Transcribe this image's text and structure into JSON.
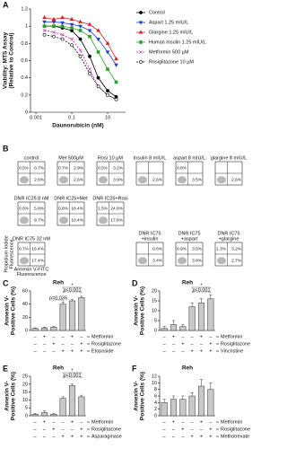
{
  "chart_data": [
    {
      "type": "line",
      "panel": "A",
      "y_label": [
        "Viability: MTS Assay",
        "(Relative to Control)"
      ],
      "x_label": "Daunorubicin (nM)",
      "log_x": true,
      "x": [
        0.003,
        0.01,
        0.03,
        0.1,
        0.3,
        1,
        3,
        10,
        30
      ],
      "xlim": [
        0.0005,
        100
      ],
      "xticks": [
        0.001,
        0.1,
        10
      ],
      "ylim": [
        0,
        1.2
      ],
      "yticks": [
        0,
        0.2,
        0.4,
        0.6,
        0.8,
        1,
        1.2
      ],
      "legend": "right",
      "series": [
        {
          "name": "Control",
          "color": "#000000",
          "marker": "circle",
          "values": [
            1.0,
            1.0,
            0.98,
            0.95,
            0.85,
            0.65,
            0.4,
            0.25,
            0.18
          ]
        },
        {
          "name": "Aspart 1.25 mIU/L",
          "color": "#1f3fbf",
          "marker": "tri-down",
          "values": [
            1.05,
            1.05,
            1.04,
            1.02,
            1.0,
            0.95,
            0.85,
            0.7,
            0.55
          ]
        },
        {
          "name": "Glargine 1.25 mIU/L",
          "color": "#d42020",
          "marker": "tri-up",
          "values": [
            1.1,
            1.08,
            1.1,
            1.08,
            1.05,
            1.02,
            0.95,
            0.8,
            0.62
          ]
        },
        {
          "name": "Human Insulin 1.25 mIU/L",
          "color": "#2aa02a",
          "marker": "square",
          "values": [
            1.0,
            1.0,
            1.0,
            0.98,
            0.95,
            0.88,
            0.7,
            0.5,
            0.35
          ]
        },
        {
          "name": "Metformin 500 µM",
          "color": "#c020c0",
          "marker": "cross",
          "dash": true,
          "values": [
            0.95,
            0.93,
            0.9,
            0.85,
            0.72,
            0.5,
            0.3,
            0.2,
            0.15
          ]
        },
        {
          "name": "Rosiglitazone 10 µM",
          "color": "#000000",
          "marker": "open-circle",
          "dash": true,
          "values": [
            0.9,
            0.88,
            0.85,
            0.78,
            0.65,
            0.45,
            0.3,
            0.2,
            0.15
          ]
        }
      ]
    },
    {
      "type": "bar",
      "panel": "C",
      "title": "Reh",
      "y_label": [
        "Annexin V-",
        "Positive Cells (%)"
      ],
      "color": "#c8c8c8",
      "ylim": [
        0,
        60
      ],
      "yticks": [
        0,
        20,
        40,
        60
      ],
      "values": [
        3,
        4,
        5,
        40,
        45,
        50
      ],
      "errors": [
        1,
        1,
        1,
        3,
        2,
        2
      ],
      "annotations": [
        "*",
        "p<0.001",
        "p=0.035"
      ],
      "rows": [
        {
          "name": "Metformin",
          "signs": [
            "–",
            "+",
            "–",
            "–",
            "+",
            "–"
          ]
        },
        {
          "name": "Rosiglitazone",
          "signs": [
            "–",
            "–",
            "+",
            "–",
            "–",
            "+"
          ]
        },
        {
          "name": "Etoposide",
          "signs": [
            "–",
            "–",
            "–",
            "+",
            "+",
            "+"
          ]
        }
      ]
    },
    {
      "type": "bar",
      "panel": "D",
      "title": "Reh",
      "y_label": [
        "Annexin V-",
        "Positive Cells (%)"
      ],
      "color": "#c8c8c8",
      "ylim": [
        0,
        20
      ],
      "yticks": [
        0,
        5,
        10,
        15,
        20
      ],
      "values": [
        1,
        3,
        2,
        12,
        14,
        16
      ],
      "errors": [
        1,
        2,
        1,
        2,
        2,
        2
      ],
      "annotations": [
        "*",
        "p<0.001"
      ],
      "rows": [
        {
          "name": "Metformin",
          "signs": [
            "–",
            "+",
            "–",
            "–",
            "+",
            "–"
          ]
        },
        {
          "name": "Rosiglitazone",
          "signs": [
            "–",
            "–",
            "+",
            "–",
            "–",
            "+"
          ]
        },
        {
          "name": "Vincristine",
          "signs": [
            "–",
            "–",
            "–",
            "+",
            "+",
            "+"
          ]
        }
      ]
    },
    {
      "type": "bar",
      "panel": "E",
      "title": "Reh",
      "y_label": [
        "Annexin V-",
        "Positive Cells (%)"
      ],
      "color": "#c8c8c8",
      "ylim": [
        0,
        25
      ],
      "yticks": [
        0,
        5,
        10,
        15,
        20,
        25
      ],
      "values": [
        1,
        2,
        1,
        11,
        19,
        12
      ],
      "errors": [
        0.5,
        1,
        0.5,
        1,
        1,
        1
      ],
      "annotations": [
        "*",
        "p<0.001"
      ],
      "rows": [
        {
          "name": "Metformin",
          "signs": [
            "–",
            "+",
            "–",
            "–",
            "+",
            "–"
          ]
        },
        {
          "name": "Rosiglitazone",
          "signs": [
            "–",
            "–",
            "+",
            "–",
            "–",
            "+"
          ]
        },
        {
          "name": "Asparaginase",
          "signs": [
            "–",
            "–",
            "–",
            "+",
            "+",
            "+"
          ]
        }
      ]
    },
    {
      "type": "bar",
      "panel": "F",
      "title": "Reh",
      "y_label": [
        "Annexin V-",
        "Positive Cells (%)"
      ],
      "color": "#c8c8c8",
      "ylim": [
        0,
        12
      ],
      "yticks": [
        0,
        2,
        4,
        6,
        8,
        10,
        12
      ],
      "values": [
        4,
        5,
        5,
        6,
        9,
        8
      ],
      "errors": [
        1,
        1,
        1,
        1,
        2,
        2
      ],
      "annotations": [],
      "rows": [
        {
          "name": "Metformin",
          "signs": [
            "–",
            "+",
            "–",
            "–",
            "+",
            "–"
          ]
        },
        {
          "name": "Rosiglitazone",
          "signs": [
            "–",
            "–",
            "+",
            "–",
            "–",
            "+"
          ]
        },
        {
          "name": "Methotrexate",
          "signs": [
            "–",
            "–",
            "–",
            "+",
            "+",
            "+"
          ]
        }
      ]
    }
  ],
  "panel_b": {
    "label": "B",
    "y_axis": [
      "Propidium Iodide",
      "Fluorescence"
    ],
    "x_axis": [
      "Annexin V-FITC",
      "Fluorescence"
    ],
    "plots": [
      {
        "title": [
          "control"
        ],
        "ul": "0.5%",
        "ur": "0.7%",
        "lr": "2.6%"
      },
      {
        "title": [
          "Met 500µM"
        ],
        "ul": "0.7%",
        "ur": "2.9%",
        "lr": "2.6%"
      },
      {
        "title": [
          "Rosi 10 µM"
        ],
        "ul": "0.5%",
        "ur": "3.2%",
        "lr": "3.9%"
      },
      {
        "title": [
          "Insulin 8 mIU/L"
        ],
        "lr": "2.6%"
      },
      {
        "title": [
          "aspart 8 mIU/L"
        ],
        "ul": "0.8%",
        "lr": "3.5%"
      },
      {
        "title": [
          "glargine 8 mIU/L"
        ],
        "lr": "2.6%"
      },
      {
        "title": [
          "DNR IC25 8 nM"
        ],
        "ul": "0.6%",
        "ur": "5.8%",
        "lr": "9.7%"
      },
      {
        "title": [
          "DNR IC25+Met"
        ],
        "ul": "0.8%",
        "ur": "18.4%",
        "lr": "10.4%"
      },
      {
        "title": [
          "DNR IC25+Rosi"
        ],
        "ul": "1.5%",
        "ur": "24.8%",
        "lr": "17.8%"
      },
      {
        "title": [
          "DNR IC75 32 nM"
        ],
        "ul": "0.7%",
        "ur": "16.4%",
        "lr": "17.4%"
      },
      {
        "title": [
          "DNR IC75",
          "+insulin"
        ],
        "ur": "0.6%",
        "lr": "3.4%"
      },
      {
        "title": [
          "DNR IC75",
          "+aspart"
        ],
        "ul": "0.9%",
        "ur": "3.5%",
        "lr": "3.8%"
      },
      {
        "title": [
          "DNR IC75",
          "+glargine"
        ],
        "ul": "1.3%",
        "ur": "3.2%",
        "lr": "2.7%"
      }
    ]
  }
}
